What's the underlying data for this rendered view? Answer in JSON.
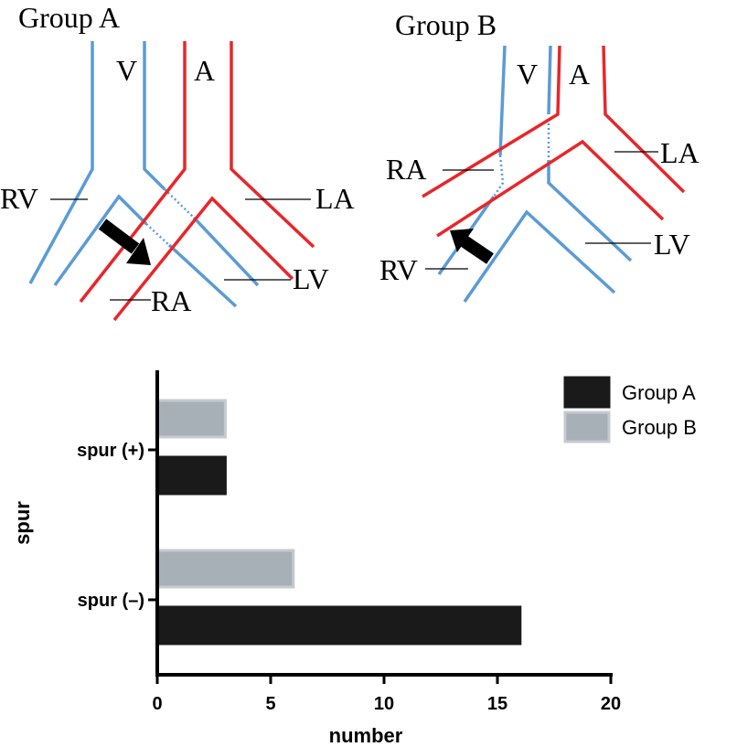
{
  "diagram": {
    "panels": [
      {
        "title": "Group A",
        "labels": {
          "v": "V",
          "a": "A",
          "rv": "RV",
          "la": "LA",
          "ra": "RA",
          "lv": "LV"
        }
      },
      {
        "title": "Group B",
        "labels": {
          "v": "V",
          "a": "A",
          "rv": "RV",
          "la": "LA",
          "ra": "RA",
          "lv": "LV"
        }
      }
    ]
  },
  "chart_data": {
    "type": "barh",
    "categories": [
      "spur (+)",
      "spur (–)"
    ],
    "series": [
      {
        "name": "Group A",
        "color": "#1a1a1a",
        "values": [
          3,
          16
        ]
      },
      {
        "name": "Group B",
        "color": "#a7b0b7",
        "values": [
          3,
          6
        ]
      }
    ],
    "xlim": [
      0,
      20
    ],
    "xticks": [
      0,
      5,
      10,
      15,
      20
    ],
    "x_label": "number",
    "y_label": "spur",
    "legend": "top-right"
  }
}
